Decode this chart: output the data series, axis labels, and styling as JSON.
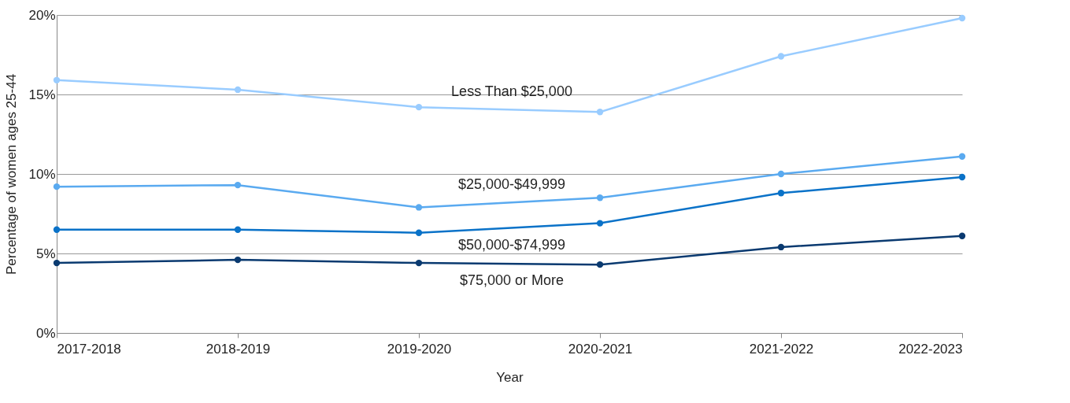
{
  "chart_data": {
    "type": "line",
    "xlabel": "Year",
    "ylabel": "Percentage of women ages 25-44",
    "categories": [
      "2017-2018",
      "2018-2019",
      "2019-2020",
      "2020-2021",
      "2021-2022",
      "2022-2023"
    ],
    "series": [
      {
        "name": "Less Than $25,000",
        "color": "#99ccff",
        "values": [
          15.9,
          15.3,
          14.2,
          13.9,
          17.4,
          19.8
        ]
      },
      {
        "name": "$25,000-$49,999",
        "color": "#5aaaf0",
        "values": [
          9.2,
          9.3,
          7.9,
          8.5,
          10.0,
          11.1
        ]
      },
      {
        "name": "$50,000-$74,999",
        "color": "#0a72c8",
        "values": [
          6.5,
          6.5,
          6.3,
          6.9,
          8.8,
          9.8
        ]
      },
      {
        "name": "$75,000 or More",
        "color": "#0a3a70",
        "values": [
          4.4,
          4.6,
          4.4,
          4.3,
          5.4,
          6.1
        ]
      }
    ],
    "ylim": [
      0,
      20
    ],
    "yticks": [
      {
        "value": 0,
        "label": "0%"
      },
      {
        "value": 5,
        "label": "5%"
      },
      {
        "value": 10,
        "label": "10%"
      },
      {
        "value": 15,
        "label": "15%"
      },
      {
        "value": 20,
        "label": "20%"
      }
    ],
    "grid": "y",
    "marker": "circle",
    "line_style": "solid",
    "legend": false
  }
}
